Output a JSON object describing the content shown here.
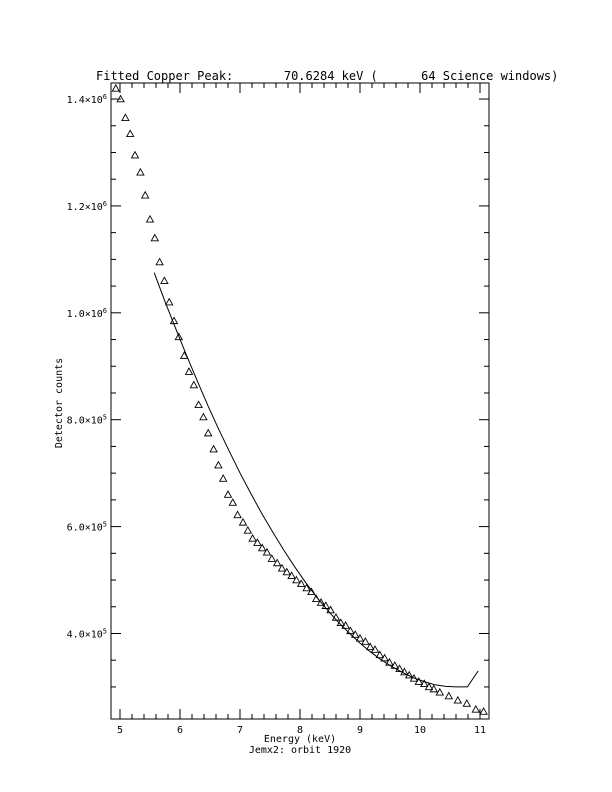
{
  "chart_data": {
    "type": "scatter",
    "title": "Fitted Copper Peak:       70.6284 keV (      64 Science windows)",
    "xlabel": "Energy (keV)",
    "subtitle": "Jemx2: orbit 1920",
    "ylabel": "Detector counts",
    "xlim": [
      4.85,
      11.15
    ],
    "ylim": [
      240000,
      1430000
    ],
    "x_ticks": [
      5,
      6,
      7,
      8,
      9,
      10,
      11
    ],
    "y_ticks": [
      {
        "value": 400000,
        "label": "4.0×10",
        "exp": "5"
      },
      {
        "value": 600000,
        "label": "6.0×10",
        "exp": "5"
      },
      {
        "value": 800000,
        "label": "8.0×10",
        "exp": "5"
      },
      {
        "value": 1000000,
        "label": "1.0×10",
        "exp": "6"
      },
      {
        "value": 1200000,
        "label": "1.2×10",
        "exp": "6"
      },
      {
        "value": 1400000,
        "label": "1.4×10",
        "exp": "6"
      }
    ],
    "grid": false,
    "series": [
      {
        "marker": "triangle",
        "x": [
          4.93,
          5.01,
          5.09,
          5.17,
          5.25,
          5.34,
          5.42,
          5.5,
          5.58,
          5.66,
          5.74,
          5.82,
          5.9,
          5.98,
          6.07,
          6.15,
          6.23,
          6.31,
          6.39,
          6.47,
          6.56,
          6.64,
          6.72,
          6.8,
          6.88,
          6.96,
          7.05,
          7.13,
          7.21,
          7.29,
          7.37,
          7.45,
          7.53,
          7.62,
          7.7,
          7.78,
          7.86,
          7.94,
          8.02,
          8.11,
          8.19,
          8.27,
          8.35,
          8.43,
          8.51,
          8.6,
          8.68,
          8.76,
          8.84,
          8.92,
          9.0,
          9.09,
          9.17,
          9.25,
          9.33,
          9.41,
          9.49,
          9.58,
          9.66,
          9.74,
          9.82,
          9.9,
          9.98,
          10.07,
          10.15,
          10.23,
          10.33,
          10.48,
          10.63,
          10.78,
          10.93,
          11.06
        ],
        "y": [
          1420000,
          1400000,
          1365000,
          1335000,
          1295000,
          1263000,
          1220000,
          1175000,
          1140000,
          1095000,
          1060000,
          1020000,
          985000,
          955000,
          920000,
          890000,
          865000,
          828000,
          805000,
          775000,
          745000,
          715000,
          690000,
          660000,
          645000,
          622000,
          608000,
          593000,
          578000,
          570000,
          560000,
          552000,
          540000,
          532000,
          522000,
          515000,
          508000,
          500000,
          493000,
          485000,
          478000,
          465000,
          458000,
          452000,
          444000,
          430000,
          420000,
          415000,
          405000,
          398000,
          391000,
          385000,
          375000,
          370000,
          360000,
          354000,
          346000,
          340000,
          334000,
          328000,
          322000,
          316000,
          310000,
          306000,
          300000,
          296000,
          290000,
          283000,
          275000,
          269000,
          258000,
          254000
        ]
      },
      {
        "marker": "line",
        "x": [
          5.57,
          5.75,
          5.93,
          6.11,
          6.29,
          6.47,
          6.65,
          6.83,
          7.01,
          7.19,
          7.37,
          7.55,
          7.73,
          7.91,
          8.09,
          8.27,
          8.45,
          8.63,
          8.81,
          8.99,
          9.17,
          9.35,
          9.53,
          9.71,
          9.89,
          10.07,
          10.25,
          10.43,
          10.61,
          10.79,
          10.97
        ],
        "y": [
          1075000,
          1021000,
          970000,
          920000,
          872000,
          825000,
          781000,
          739000,
          698000,
          660000,
          623000,
          589000,
          556000,
          525000,
          496000,
          469000,
          445000,
          422000,
          402000,
          383000,
          366000,
          351000,
          338000,
          327000,
          317000,
          310000,
          304000,
          301000,
          300000,
          300000,
          330000
        ]
      }
    ]
  }
}
